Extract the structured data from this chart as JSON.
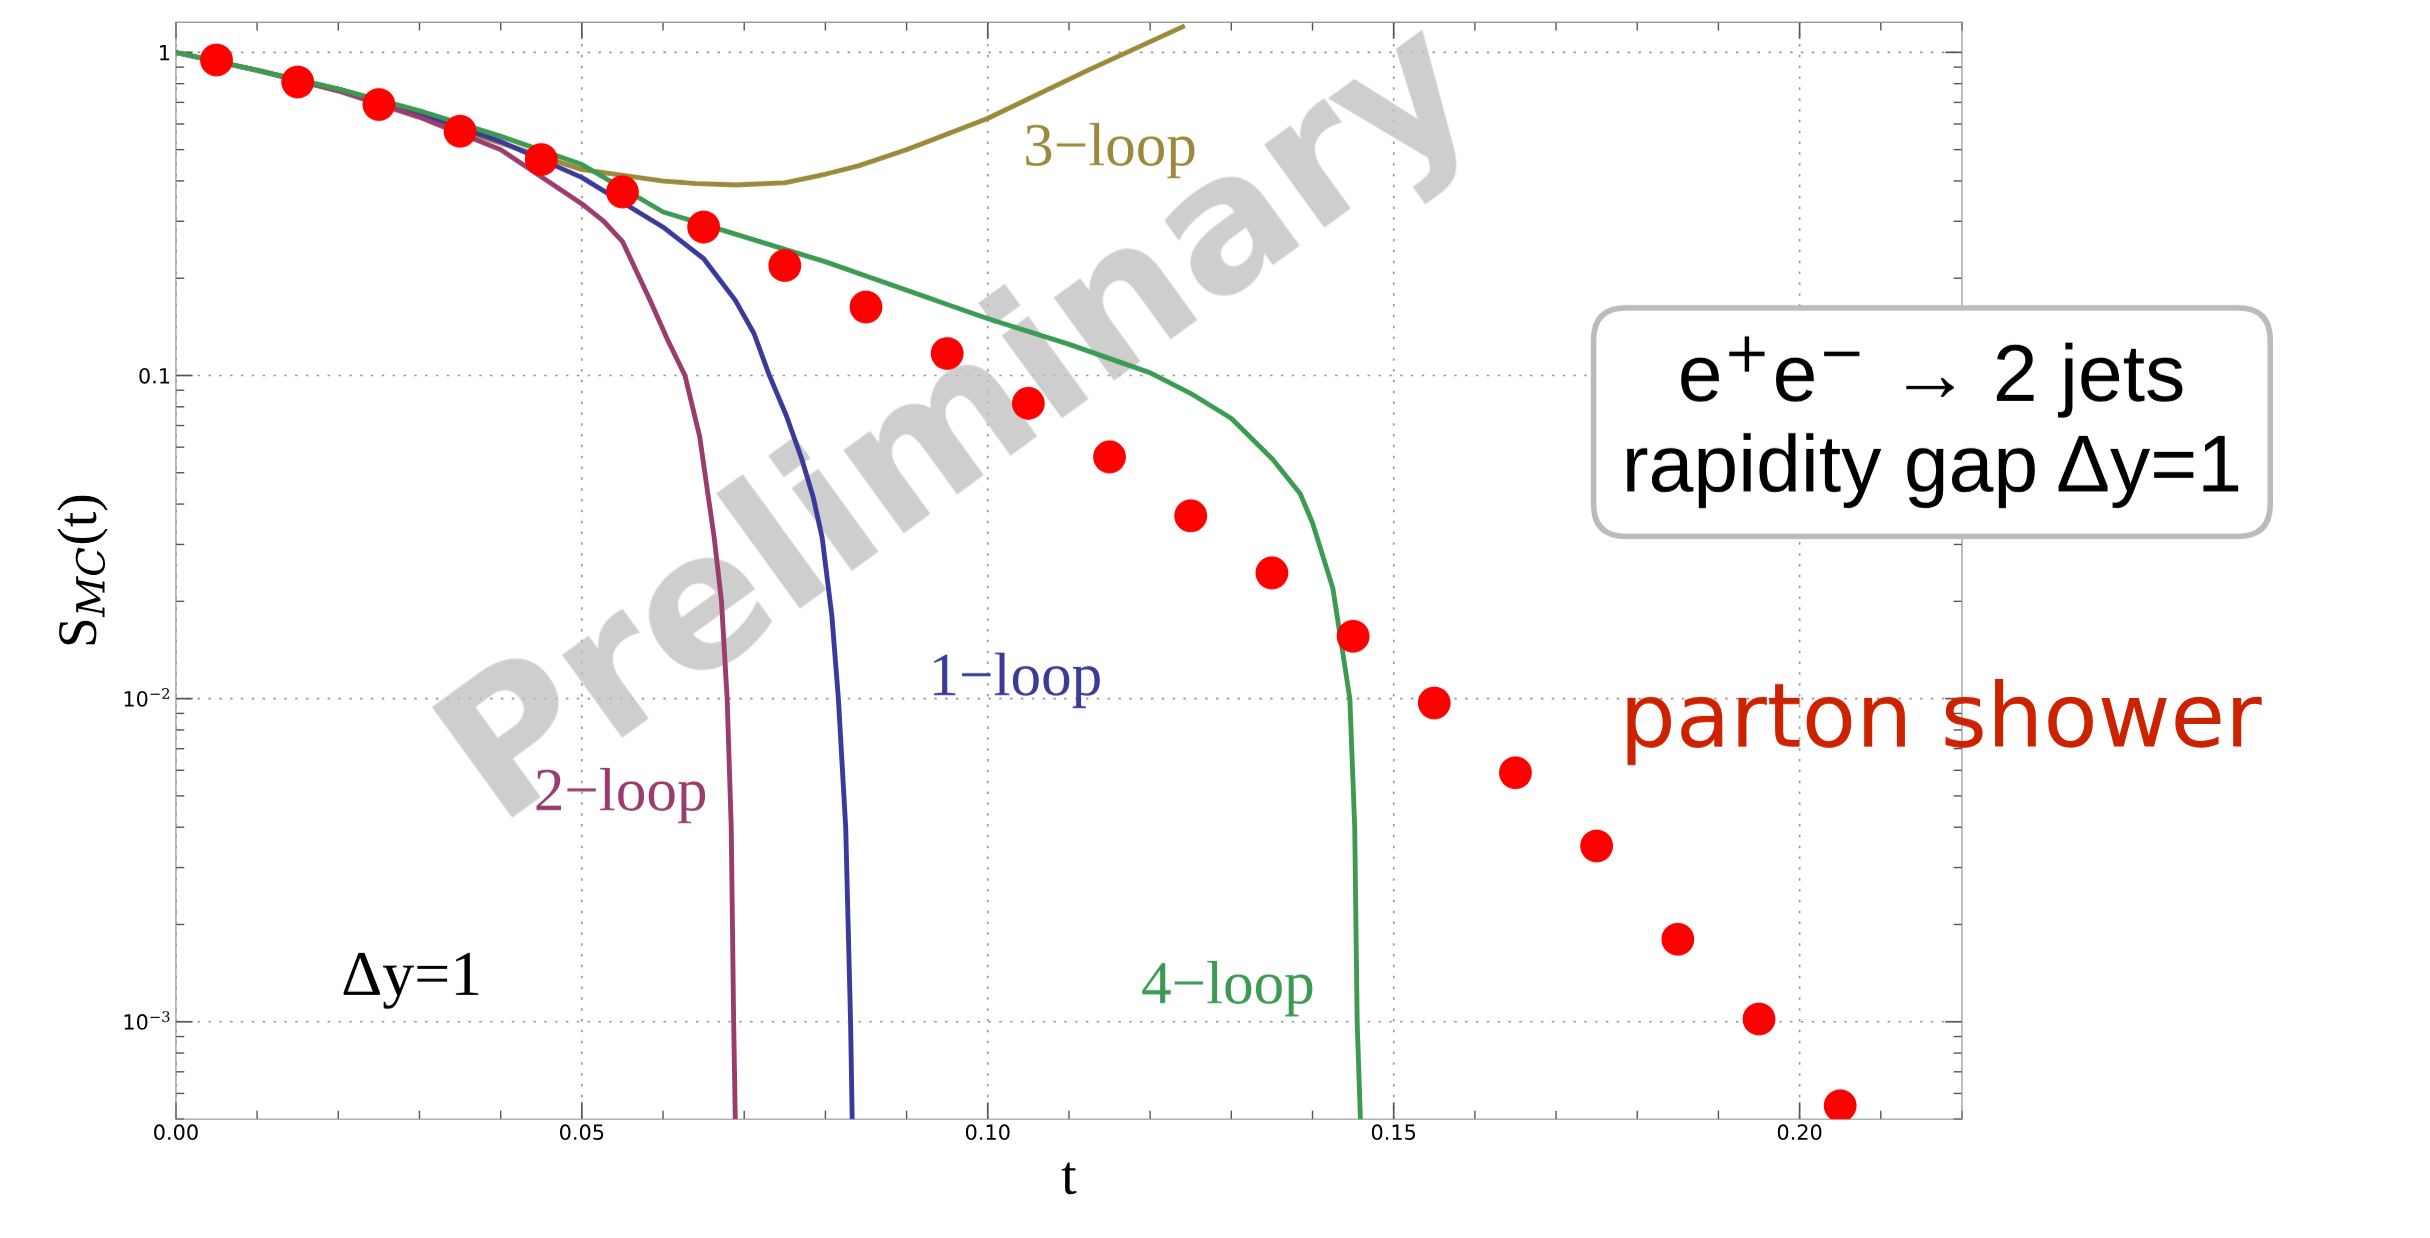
{
  "chart_data": {
    "type": "line",
    "xlabel": "t",
    "ylabel": "S$_{MC}$(t)",
    "xlim": [
      0,
      0.22
    ],
    "ylim": [
      0.0005,
      1.24
    ],
    "log": "y",
    "xticks": [
      {
        "value": 0,
        "label": "0.00"
      },
      0.05,
      {
        "value": 0.1,
        "label": "0.10"
      },
      0.15,
      {
        "value": 0.2,
        "label": "0.20"
      }
    ],
    "yticks": [
      {
        "value": 0.001,
        "label": "10$^{−3}$"
      },
      {
        "value": 0.01,
        "label": "10$^{−2}$"
      },
      0.1,
      1
    ],
    "grid": true,
    "legend": false,
    "series": [
      {
        "name": "3−loop",
        "color": "#9a8a3a",
        "x": [
          0,
          0.01,
          0.02,
          0.03,
          0.037,
          0.05,
          0.06,
          0.064,
          0.069,
          0.075,
          0.08,
          0.0841,
          0.09,
          0.1,
          0.1124,
          0.124
        ],
        "values": [
          1,
          0.88,
          0.77,
          0.65,
          0.555,
          0.434,
          0.4,
          0.393,
          0.389,
          0.395,
          0.42,
          0.446,
          0.5,
          0.625,
          0.882,
          1.2
        ]
      },
      {
        "name": "1−loop",
        "color": "#3a3a9a",
        "x": [
          0.02,
          0.03,
          0.04,
          0.05,
          0.06,
          0.065,
          0.0689,
          0.0712,
          0.0731,
          0.0752,
          0.0771,
          0.0785,
          0.0796,
          0.0808,
          0.0816,
          0.0825,
          0.0831,
          0.0833
        ],
        "values": [
          0.77,
          0.65,
          0.53,
          0.41,
          0.288,
          0.23,
          0.171,
          0.135,
          0.1,
          0.075,
          0.055,
          0.042,
          0.0315,
          0.018,
          0.01,
          0.004,
          0.001,
          0.0005
        ]
      },
      {
        "name": "2−loop",
        "color": "#9a3d6e",
        "x": [
          0,
          0.01,
          0.02,
          0.03,
          0.04,
          0.05,
          0.0527,
          0.055,
          0.0584,
          0.0605,
          0.0627,
          0.0645,
          0.0663,
          0.0672,
          0.0679,
          0.0684,
          0.0687,
          0.0689
        ],
        "values": [
          1,
          0.88,
          0.76,
          0.63,
          0.5,
          0.34,
          0.3,
          0.26,
          0.171,
          0.13,
          0.1,
          0.065,
          0.0315,
          0.02,
          0.01,
          0.004,
          0.001,
          0.0005
        ]
      },
      {
        "name": "4−loop",
        "color": "#3c9a52",
        "x": [
          0,
          0.01,
          0.02,
          0.03,
          0.04,
          0.05,
          0.06,
          0.08,
          0.1,
          0.11,
          0.12,
          0.125,
          0.13,
          0.1351,
          0.1385,
          0.14,
          0.1425,
          0.1446,
          0.1452,
          0.1455,
          0.1459
        ],
        "values": [
          1,
          0.88,
          0.77,
          0.66,
          0.55,
          0.45,
          0.321,
          0.225,
          0.15,
          0.125,
          0.102,
          0.088,
          0.0737,
          0.055,
          0.043,
          0.035,
          0.022,
          0.01,
          0.004,
          0.001,
          0.0005
        ]
      },
      {
        "name": "parton shower",
        "type": "scatter",
        "color": "#ff0000",
        "x": [
          0.005,
          0.015,
          0.025,
          0.035,
          0.045,
          0.055,
          0.065,
          0.075,
          0.085,
          0.095,
          0.105,
          0.115,
          0.125,
          0.135,
          0.145,
          0.155,
          0.165,
          0.175,
          0.185,
          0.195,
          0.205
        ],
        "values": [
          0.947,
          0.81,
          0.69,
          0.57,
          0.466,
          0.37,
          0.288,
          0.219,
          0.163,
          0.117,
          0.082,
          0.056,
          0.0368,
          0.0245,
          0.0156,
          0.0097,
          0.0059,
          0.0035,
          0.0018,
          0.00102,
          0.00055
        ]
      }
    ],
    "annotations": [
      "Preliminary",
      "Δy=1",
      "e$^{+}$e$^{−}$ → 2 jets\nrapidity gap Δy=1"
    ]
  }
}
